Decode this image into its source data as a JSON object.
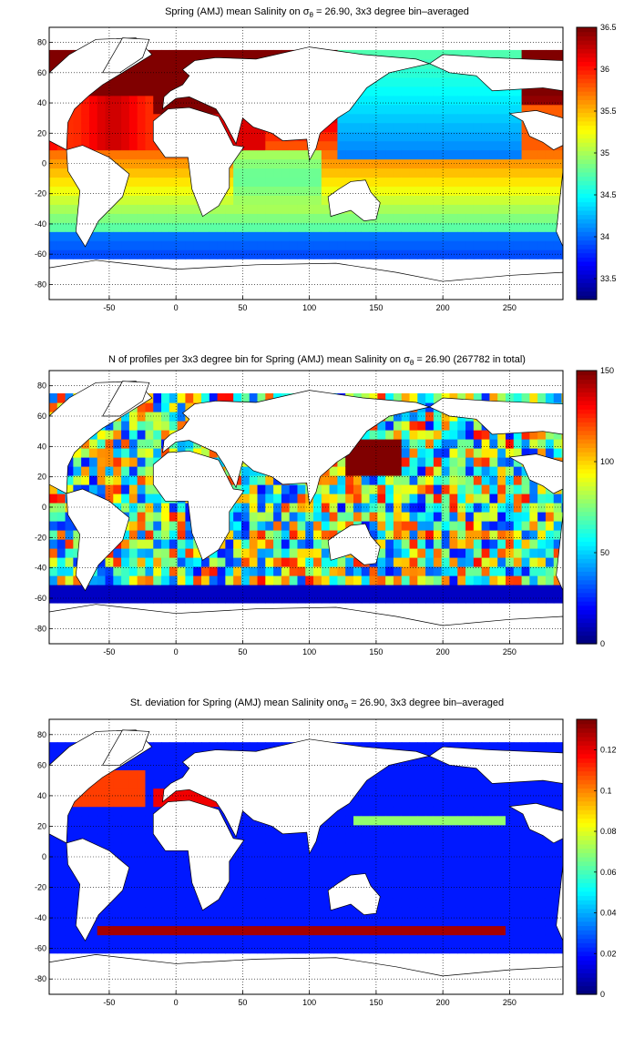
{
  "chart_data": [
    {
      "type": "heatmap",
      "title_prefix": "Spring (AMJ) mean Salinity on σ",
      "title_sub": "θ",
      "title_suffix": " = 26.90, 3x3 degree bin–averaged",
      "x_ticks": [
        "-50",
        "0",
        "50",
        "100",
        "150",
        "200",
        "250"
      ],
      "x_tick_values": [
        -50,
        0,
        50,
        100,
        150,
        200,
        250
      ],
      "y_ticks": [
        "80",
        "60",
        "40",
        "20",
        "0",
        "-20",
        "-40",
        "-60",
        "-80"
      ],
      "y_tick_values": [
        80,
        60,
        40,
        20,
        0,
        -20,
        -40,
        -60,
        -80
      ],
      "xlim": [
        -95,
        290
      ],
      "ylim": [
        -90,
        90
      ],
      "colorbar_ticks": [
        "36.5",
        "36",
        "35.5",
        "35",
        "34.5",
        "34",
        "33.5"
      ],
      "colorbar_values": [
        36.5,
        36,
        35.5,
        35,
        34.5,
        34,
        33.5
      ],
      "clim": [
        33.25,
        36.5
      ],
      "colormap": "jet",
      "grid": "dotted",
      "field_summary": {
        "north_atlantic": 36.2,
        "mediterranean": 36.5,
        "red_sea": 36.1,
        "indian_ocean": 35.0,
        "north_pacific": 34.2,
        "southern_ocean": 34.3,
        "antarctic_margin": 33.8
      }
    },
    {
      "type": "heatmap",
      "title_prefix": "N of profiles per 3x3 degree bin for Spring (AMJ) mean Salinity on σ",
      "title_sub": "θ",
      "title_suffix": " = 26.90 (267782 in total)",
      "x_ticks": [
        "-50",
        "0",
        "50",
        "100",
        "150",
        "200",
        "250"
      ],
      "x_tick_values": [
        -50,
        0,
        50,
        100,
        150,
        200,
        250
      ],
      "y_ticks": [
        "80",
        "60",
        "40",
        "20",
        "0",
        "-20",
        "-40",
        "-60",
        "-80"
      ],
      "y_tick_values": [
        80,
        60,
        40,
        20,
        0,
        -20,
        -40,
        -60,
        -80
      ],
      "xlim": [
        -95,
        290
      ],
      "ylim": [
        -90,
        90
      ],
      "colorbar_ticks": [
        "150",
        "100",
        "50",
        "0"
      ],
      "colorbar_values": [
        150,
        100,
        50,
        0
      ],
      "clim": [
        0,
        150
      ],
      "colormap": "jet",
      "grid": "dotted",
      "total_profiles": 267782
    },
    {
      "type": "heatmap",
      "title_prefix": "St. deviation for Spring (AMJ) mean Salinity onσ",
      "title_sub": "θ",
      "title_suffix": " = 26.90, 3x3 degree bin–averaged",
      "x_ticks": [
        "-50",
        "0",
        "50",
        "100",
        "150",
        "200",
        "250"
      ],
      "x_tick_values": [
        -50,
        0,
        50,
        100,
        150,
        200,
        250
      ],
      "y_ticks": [
        "80",
        "60",
        "40",
        "20",
        "0",
        "-20",
        "-40",
        "-60",
        "-80"
      ],
      "y_tick_values": [
        80,
        60,
        40,
        20,
        0,
        -20,
        -40,
        -60,
        -80
      ],
      "xlim": [
        -95,
        290
      ],
      "ylim": [
        -90,
        90
      ],
      "colorbar_ticks": [
        "0.12",
        "0.1",
        "0.08",
        "0.06",
        "0.04",
        "0.02",
        "0"
      ],
      "colorbar_values": [
        0.12,
        0.1,
        0.08,
        0.06,
        0.04,
        0.02,
        0
      ],
      "clim": [
        0,
        0.135
      ],
      "colormap": "jet",
      "grid": "dotted",
      "field_summary": {
        "background": 0.02,
        "antarctic_circumpolar_band": 0.135,
        "north_atlantic_max": 0.135,
        "kuroshio_band": 0.07
      }
    }
  ]
}
